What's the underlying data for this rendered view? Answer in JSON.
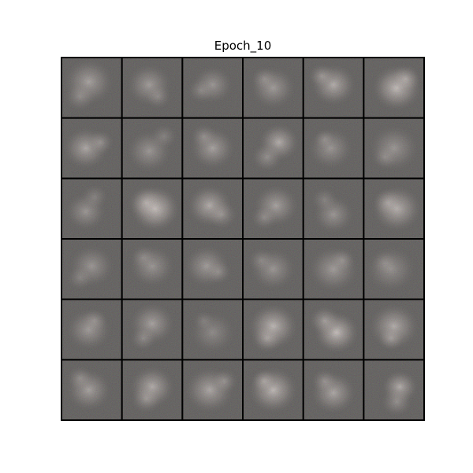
{
  "figure": {
    "title": "Epoch_10"
  },
  "grid": {
    "rows": 6,
    "cols": 6,
    "tiles": [
      {
        "bright": 0.55,
        "blobs": [
          [
            0.45,
            0.4,
            0.55
          ],
          [
            0.3,
            0.65,
            0.35
          ]
        ]
      },
      {
        "bright": 0.5,
        "blobs": [
          [
            0.45,
            0.45,
            0.5
          ],
          [
            0.6,
            0.65,
            0.3
          ]
        ]
      },
      {
        "bright": 0.45,
        "blobs": [
          [
            0.5,
            0.45,
            0.45
          ],
          [
            0.3,
            0.55,
            0.3
          ]
        ]
      },
      {
        "bright": 0.5,
        "blobs": [
          [
            0.5,
            0.5,
            0.5
          ],
          [
            0.35,
            0.35,
            0.3
          ]
        ]
      },
      {
        "bright": 0.65,
        "blobs": [
          [
            0.5,
            0.45,
            0.5
          ],
          [
            0.3,
            0.3,
            0.3
          ]
        ]
      },
      {
        "bright": 0.8,
        "blobs": [
          [
            0.55,
            0.5,
            0.55
          ],
          [
            0.7,
            0.35,
            0.35
          ]
        ]
      },
      {
        "bright": 0.6,
        "blobs": [
          [
            0.4,
            0.5,
            0.5
          ],
          [
            0.65,
            0.4,
            0.3
          ]
        ]
      },
      {
        "bright": 0.45,
        "blobs": [
          [
            0.45,
            0.55,
            0.5
          ],
          [
            0.7,
            0.3,
            0.3
          ]
        ]
      },
      {
        "bright": 0.55,
        "blobs": [
          [
            0.5,
            0.5,
            0.5
          ],
          [
            0.35,
            0.3,
            0.3
          ]
        ]
      },
      {
        "bright": 0.65,
        "blobs": [
          [
            0.6,
            0.4,
            0.45
          ],
          [
            0.4,
            0.65,
            0.35
          ]
        ]
      },
      {
        "bright": 0.45,
        "blobs": [
          [
            0.45,
            0.5,
            0.5
          ],
          [
            0.35,
            0.35,
            0.25
          ]
        ]
      },
      {
        "bright": 0.45,
        "blobs": [
          [
            0.5,
            0.5,
            0.55
          ],
          [
            0.35,
            0.65,
            0.3
          ]
        ]
      },
      {
        "bright": 0.45,
        "blobs": [
          [
            0.4,
            0.55,
            0.45
          ],
          [
            0.55,
            0.3,
            0.3
          ]
        ]
      },
      {
        "bright": 0.85,
        "blobs": [
          [
            0.55,
            0.5,
            0.55
          ],
          [
            0.4,
            0.4,
            0.4
          ]
        ]
      },
      {
        "bright": 0.65,
        "blobs": [
          [
            0.45,
            0.45,
            0.5
          ],
          [
            0.65,
            0.6,
            0.35
          ]
        ]
      },
      {
        "bright": 0.55,
        "blobs": [
          [
            0.55,
            0.45,
            0.5
          ],
          [
            0.35,
            0.65,
            0.3
          ]
        ]
      },
      {
        "bright": 0.45,
        "blobs": [
          [
            0.5,
            0.6,
            0.45
          ],
          [
            0.35,
            0.35,
            0.3
          ]
        ]
      },
      {
        "bright": 0.7,
        "blobs": [
          [
            0.55,
            0.5,
            0.55
          ],
          [
            0.4,
            0.4,
            0.35
          ]
        ]
      },
      {
        "bright": 0.45,
        "blobs": [
          [
            0.5,
            0.45,
            0.5
          ],
          [
            0.3,
            0.65,
            0.3
          ]
        ]
      },
      {
        "bright": 0.45,
        "blobs": [
          [
            0.5,
            0.45,
            0.5
          ],
          [
            0.35,
            0.3,
            0.3
          ]
        ]
      },
      {
        "bright": 0.5,
        "blobs": [
          [
            0.4,
            0.45,
            0.5
          ],
          [
            0.6,
            0.55,
            0.3
          ]
        ]
      },
      {
        "bright": 0.45,
        "blobs": [
          [
            0.5,
            0.5,
            0.5
          ],
          [
            0.3,
            0.35,
            0.3
          ]
        ]
      },
      {
        "bright": 0.5,
        "blobs": [
          [
            0.5,
            0.5,
            0.55
          ],
          [
            0.65,
            0.35,
            0.3
          ]
        ]
      },
      {
        "bright": 0.4,
        "blobs": [
          [
            0.45,
            0.5,
            0.55
          ],
          [
            0.35,
            0.4,
            0.3
          ]
        ]
      },
      {
        "bright": 0.5,
        "blobs": [
          [
            0.45,
            0.5,
            0.5
          ],
          [
            0.55,
            0.35,
            0.3
          ]
        ]
      },
      {
        "bright": 0.55,
        "blobs": [
          [
            0.5,
            0.4,
            0.5
          ],
          [
            0.35,
            0.65,
            0.3
          ]
        ]
      },
      {
        "bright": 0.35,
        "blobs": [
          [
            0.5,
            0.55,
            0.5
          ],
          [
            0.35,
            0.35,
            0.25
          ]
        ]
      },
      {
        "bright": 0.75,
        "blobs": [
          [
            0.5,
            0.45,
            0.55
          ],
          [
            0.4,
            0.65,
            0.35
          ]
        ]
      },
      {
        "bright": 0.8,
        "blobs": [
          [
            0.55,
            0.55,
            0.5
          ],
          [
            0.35,
            0.35,
            0.35
          ]
        ]
      },
      {
        "bright": 0.65,
        "blobs": [
          [
            0.5,
            0.45,
            0.55
          ],
          [
            0.45,
            0.65,
            0.3
          ]
        ]
      },
      {
        "bright": 0.55,
        "blobs": [
          [
            0.45,
            0.5,
            0.5
          ],
          [
            0.3,
            0.3,
            0.3
          ]
        ]
      },
      {
        "bright": 0.65,
        "blobs": [
          [
            0.5,
            0.45,
            0.5
          ],
          [
            0.4,
            0.65,
            0.35
          ]
        ]
      },
      {
        "bright": 0.6,
        "blobs": [
          [
            0.45,
            0.5,
            0.55
          ],
          [
            0.7,
            0.35,
            0.3
          ]
        ]
      },
      {
        "bright": 0.75,
        "blobs": [
          [
            0.5,
            0.5,
            0.55
          ],
          [
            0.35,
            0.35,
            0.3
          ]
        ]
      },
      {
        "bright": 0.6,
        "blobs": [
          [
            0.5,
            0.55,
            0.5
          ],
          [
            0.35,
            0.35,
            0.3
          ]
        ]
      },
      {
        "bright": 0.65,
        "blobs": [
          [
            0.6,
            0.45,
            0.4
          ],
          [
            0.55,
            0.7,
            0.35
          ]
        ]
      }
    ]
  }
}
